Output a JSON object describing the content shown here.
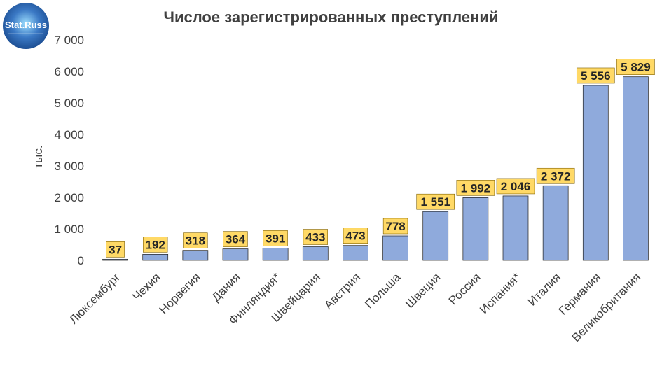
{
  "logo": {
    "text": "Stat.Russ",
    "icon": "globe-logo-icon",
    "colors": {
      "bg": "#2f67b4",
      "ring": "#2f67b4",
      "glow": "#9fe0ff",
      "text": "#ffffff"
    }
  },
  "colors": {
    "bar": "#8faadc",
    "bar_outline": "#1f1f1f",
    "label_box": "#ffd966",
    "text": "#404040"
  },
  "chart_data": {
    "type": "bar",
    "title": "Числое зарегистрированных преступлений",
    "xlabel": "",
    "ylabel": "тыс.",
    "ylim": [
      0,
      7000
    ],
    "yticks": [
      0,
      1000,
      2000,
      3000,
      4000,
      5000,
      6000,
      7000
    ],
    "ytick_labels": [
      "0",
      "1 000",
      "2 000",
      "3 000",
      "4 000",
      "5 000",
      "6 000",
      "7 000"
    ],
    "grid": false,
    "legend": "none",
    "categories": [
      "Люксембург",
      "Чехия",
      "Норвегия",
      "Дания",
      "Финляндия*",
      "Швейцария",
      "Австрия",
      "Польша",
      "Швеция",
      "Россия",
      "Испания*",
      "Италия",
      "Германия",
      "Великобритания"
    ],
    "values": [
      37,
      192,
      318,
      364,
      391,
      433,
      473,
      778,
      1551,
      1992,
      2046,
      2372,
      5556,
      5829
    ],
    "value_labels": [
      "37",
      "192",
      "318",
      "364",
      "391",
      "433",
      "473",
      "778",
      "1 551",
      "1 992",
      "2 046",
      "2 372",
      "5 556",
      "5 829"
    ]
  }
}
